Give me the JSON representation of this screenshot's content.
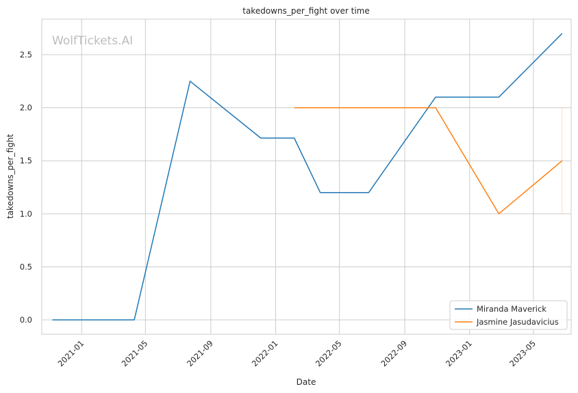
{
  "chart_data": {
    "type": "line",
    "title": "takedowns_per_fight over time",
    "xlabel": "Date",
    "ylabel": "takedowns_per_fight",
    "watermark": "WolfTickets.AI",
    "xlim": [
      "2020-10-18",
      "2023-07-11"
    ],
    "ylim": [
      -0.135,
      2.835
    ],
    "x_ticks": [
      "2021-01",
      "2021-05",
      "2021-09",
      "2022-01",
      "2022-05",
      "2022-09",
      "2023-01",
      "2023-05"
    ],
    "x_tick_dates": [
      "2021-01-01",
      "2021-05-01",
      "2021-09-01",
      "2022-01-01",
      "2022-05-01",
      "2022-09-01",
      "2023-01-01",
      "2023-05-01"
    ],
    "y_ticks": [
      0.0,
      0.5,
      1.0,
      1.5,
      2.0,
      2.5
    ],
    "y_tick_labels": [
      "0.0",
      "0.5",
      "1.0",
      "1.5",
      "2.0",
      "2.5"
    ],
    "grid": true,
    "legend_position": "lower-right",
    "series": [
      {
        "name": "Miranda Maverick",
        "color": "#1f77b4",
        "points": [
          {
            "x": "2020-11-07",
            "y": 0.0
          },
          {
            "x": "2021-04-10",
            "y": 0.0
          },
          {
            "x": "2021-07-24",
            "y": 2.25
          },
          {
            "x": "2021-12-04",
            "y": 1.714
          },
          {
            "x": "2022-02-05",
            "y": 1.714
          },
          {
            "x": "2022-03-26",
            "y": 1.2
          },
          {
            "x": "2022-06-25",
            "y": 1.2
          },
          {
            "x": "2022-10-29",
            "y": 2.1
          },
          {
            "x": "2023-02-25",
            "y": 2.1
          },
          {
            "x": "2023-06-24",
            "y": 2.7
          }
        ]
      },
      {
        "name": "Jasmine Jasudavicius",
        "color": "#ff7f0e",
        "points": [
          {
            "x": "2022-02-05",
            "y": 2.0
          },
          {
            "x": "2022-10-29",
            "y": 2.0
          },
          {
            "x": "2023-02-25",
            "y": 1.0
          },
          {
            "x": "2023-06-24",
            "y": 1.5
          }
        ],
        "error_band": {
          "x": "2023-06-24",
          "low": 1.0,
          "high": 2.0
        }
      }
    ]
  }
}
